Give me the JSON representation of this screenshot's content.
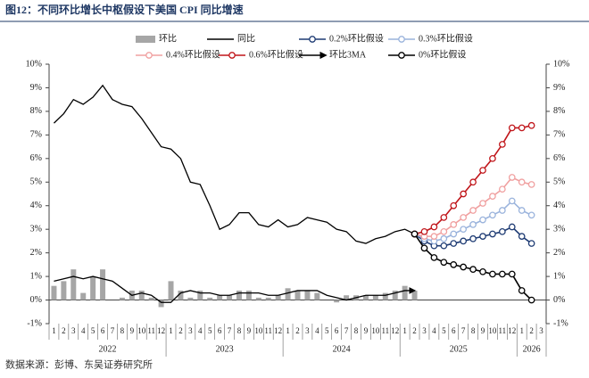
{
  "chart_data": {
    "type": "combo",
    "title": "图12：不同环比增长中枢假设下美国 CPI 同比增速",
    "source": "数据来源：彭博、东吴证券研究所",
    "categories": [
      "1",
      "2",
      "3",
      "4",
      "5",
      "6",
      "7",
      "8",
      "9",
      "10",
      "11",
      "12",
      "1",
      "2",
      "3",
      "4",
      "5",
      "6",
      "7",
      "8",
      "9",
      "10",
      "11",
      "12",
      "1",
      "2",
      "3",
      "4",
      "5",
      "6",
      "7",
      "8",
      "9",
      "10",
      "11",
      "12",
      "1",
      "2",
      "3",
      "4",
      "5",
      "6",
      "7",
      "8",
      "9",
      "10",
      "11",
      "12",
      "1",
      "2",
      "3"
    ],
    "year_labels": [
      "2022",
      "2023",
      "2024",
      "2025",
      "2026"
    ],
    "ylim": [
      -1,
      10
    ],
    "yticks": [
      {
        "value": -1,
        "label": "-1%"
      },
      {
        "value": 0,
        "label": "0%"
      },
      {
        "value": 1,
        "label": "1%"
      },
      {
        "value": 2,
        "label": "2%"
      },
      {
        "value": 3,
        "label": "3%"
      },
      {
        "value": 4,
        "label": "4%"
      },
      {
        "value": 5,
        "label": "5%"
      },
      {
        "value": 6,
        "label": "6%"
      },
      {
        "value": 7,
        "label": "7%"
      },
      {
        "value": 8,
        "label": "8%"
      },
      {
        "value": 9,
        "label": "9%"
      },
      {
        "value": 10,
        "label": "10%"
      }
    ],
    "y2lim": [
      -1,
      10
    ],
    "y2ticks": [
      {
        "value": -1,
        "label": "-1%"
      },
      {
        "value": 0,
        "label": "0%"
      },
      {
        "value": 1,
        "label": "1%"
      },
      {
        "value": 2,
        "label": "2%"
      },
      {
        "value": 3,
        "label": "3%"
      },
      {
        "value": 4,
        "label": "4%"
      },
      {
        "value": 5,
        "label": "5%"
      },
      {
        "value": 6,
        "label": "6%"
      },
      {
        "value": 7,
        "label": "7%"
      },
      {
        "value": 8,
        "label": "8%"
      },
      {
        "value": 9,
        "label": "9%"
      },
      {
        "value": 10,
        "label": "10%"
      }
    ],
    "series": [
      {
        "name": "环比",
        "kind": "bar",
        "color": "#a6a6a6",
        "values": [
          0.6,
          0.8,
          1.3,
          0.3,
          1.0,
          1.3,
          0.0,
          0.1,
          0.4,
          0.4,
          0.1,
          -0.3,
          0.8,
          0.4,
          0.1,
          0.4,
          0.1,
          0.2,
          0.2,
          0.4,
          0.4,
          0.1,
          0.1,
          0.2,
          0.5,
          0.4,
          0.4,
          0.3,
          0.0,
          -0.1,
          0.2,
          0.2,
          0.2,
          0.2,
          0.3,
          0.4,
          0.6,
          0.4,
          null,
          null,
          null,
          null,
          null,
          null,
          null,
          null,
          null,
          null,
          null,
          null,
          null
        ]
      },
      {
        "name": "同比",
        "kind": "line",
        "color": "#000000",
        "values": [
          7.5,
          7.9,
          8.5,
          8.3,
          8.6,
          9.1,
          8.5,
          8.3,
          8.2,
          7.7,
          7.1,
          6.5,
          6.4,
          6.0,
          5.0,
          4.9,
          4.0,
          3.0,
          3.2,
          3.7,
          3.7,
          3.2,
          3.1,
          3.4,
          3.1,
          3.2,
          3.5,
          3.4,
          3.3,
          3.0,
          2.9,
          2.5,
          2.4,
          2.6,
          2.7,
          2.9,
          3.0,
          2.8,
          null,
          null,
          null,
          null,
          null,
          null,
          null,
          null,
          null,
          null,
          null,
          null,
          null
        ]
      },
      {
        "name": "0.2%环比假设",
        "kind": "marker",
        "color": "#1f3c74",
        "values": [
          null,
          null,
          null,
          null,
          null,
          null,
          null,
          null,
          null,
          null,
          null,
          null,
          null,
          null,
          null,
          null,
          null,
          null,
          null,
          null,
          null,
          null,
          null,
          null,
          null,
          null,
          null,
          null,
          null,
          null,
          null,
          null,
          null,
          null,
          null,
          null,
          null,
          2.8,
          2.5,
          2.3,
          2.3,
          2.4,
          2.5,
          2.6,
          2.7,
          2.8,
          2.9,
          3.1,
          2.7,
          2.4,
          null
        ]
      },
      {
        "name": "0.3%环比假设",
        "kind": "marker",
        "color": "#9ab3dc",
        "values": [
          null,
          null,
          null,
          null,
          null,
          null,
          null,
          null,
          null,
          null,
          null,
          null,
          null,
          null,
          null,
          null,
          null,
          null,
          null,
          null,
          null,
          null,
          null,
          null,
          null,
          null,
          null,
          null,
          null,
          null,
          null,
          null,
          null,
          null,
          null,
          null,
          null,
          2.8,
          2.6,
          2.5,
          2.6,
          2.8,
          3.0,
          3.2,
          3.4,
          3.6,
          3.8,
          4.2,
          3.8,
          3.6,
          null
        ]
      },
      {
        "name": "0.4%环比假设",
        "kind": "marker",
        "color": "#f0a0a0",
        "values": [
          null,
          null,
          null,
          null,
          null,
          null,
          null,
          null,
          null,
          null,
          null,
          null,
          null,
          null,
          null,
          null,
          null,
          null,
          null,
          null,
          null,
          null,
          null,
          null,
          null,
          null,
          null,
          null,
          null,
          null,
          null,
          null,
          null,
          null,
          null,
          null,
          null,
          2.8,
          2.7,
          2.7,
          2.9,
          3.2,
          3.5,
          3.8,
          4.1,
          4.4,
          4.7,
          5.2,
          5.0,
          4.9,
          null
        ]
      },
      {
        "name": "0.6%环比假设",
        "kind": "marker",
        "color": "#c0151a",
        "values": [
          null,
          null,
          null,
          null,
          null,
          null,
          null,
          null,
          null,
          null,
          null,
          null,
          null,
          null,
          null,
          null,
          null,
          null,
          null,
          null,
          null,
          null,
          null,
          null,
          null,
          null,
          null,
          null,
          null,
          null,
          null,
          null,
          null,
          null,
          null,
          null,
          null,
          2.8,
          2.9,
          3.1,
          3.5,
          4.0,
          4.5,
          5.0,
          5.5,
          6.0,
          6.6,
          7.3,
          7.3,
          7.4,
          null
        ]
      },
      {
        "name": "环比3MA",
        "kind": "arrow",
        "color": "#000000",
        "values": [
          0.8,
          0.9,
          1.0,
          0.9,
          1.0,
          0.9,
          0.8,
          0.5,
          0.2,
          0.3,
          0.2,
          -0.1,
          -0.1,
          0.3,
          0.4,
          0.3,
          0.3,
          0.2,
          0.2,
          0.3,
          0.3,
          0.3,
          0.2,
          0.2,
          0.3,
          0.4,
          0.4,
          0.4,
          0.2,
          0.1,
          0.0,
          0.1,
          0.2,
          0.2,
          0.2,
          0.3,
          0.4,
          0.4,
          null,
          null,
          null,
          null,
          null,
          null,
          null,
          null,
          null,
          null,
          null,
          null,
          null
        ]
      },
      {
        "name": "0%环比假设",
        "kind": "marker",
        "color": "#000000",
        "values": [
          null,
          null,
          null,
          null,
          null,
          null,
          null,
          null,
          null,
          null,
          null,
          null,
          null,
          null,
          null,
          null,
          null,
          null,
          null,
          null,
          null,
          null,
          null,
          null,
          null,
          null,
          null,
          null,
          null,
          null,
          null,
          null,
          null,
          null,
          null,
          null,
          null,
          2.8,
          2.2,
          1.8,
          1.6,
          1.5,
          1.4,
          1.3,
          1.2,
          1.1,
          1.1,
          1.1,
          0.4,
          0.0,
          null
        ]
      }
    ]
  }
}
